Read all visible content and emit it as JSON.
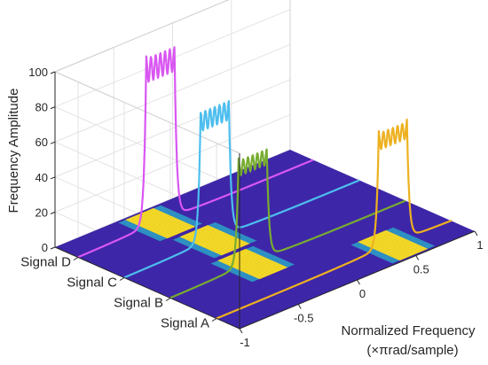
{
  "chart_data": {
    "type": "3d-line",
    "xlabel": "Normalized Frequency",
    "xlabel_unit": "(×πrad/sample)",
    "ylabel": "",
    "zlabel": "Frequency Amplitude",
    "xticks": [
      -1,
      -0.5,
      0,
      0.5,
      1
    ],
    "xlim": [
      -1,
      1
    ],
    "zticks": [
      0,
      20,
      40,
      60,
      80,
      100
    ],
    "zlim": [
      0,
      100
    ],
    "grid": true,
    "colormap_floor": true,
    "series": [
      {
        "name": "Signal A",
        "color": "#EDB120",
        "band": [
          0.38,
          0.62
        ],
        "peak": 67
      },
      {
        "name": "Signal B",
        "color": "#77AC30",
        "band": [
          -0.42,
          -0.18
        ],
        "peak": 62
      },
      {
        "name": "Signal C",
        "color": "#4DBEEE",
        "band": [
          -0.35,
          -0.11
        ],
        "peak": 76
      },
      {
        "name": "Signal D",
        "color": "#D957F2",
        "band": [
          -0.42,
          -0.18
        ],
        "peak": 97
      }
    ]
  }
}
